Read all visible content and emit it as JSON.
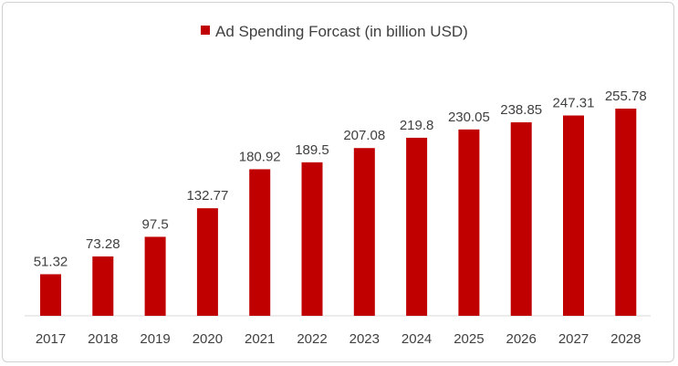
{
  "chart_data": {
    "type": "bar",
    "title": "",
    "xlabel": "",
    "ylabel": "",
    "legend": {
      "position": "top",
      "entries": [
        "Ad Spending Forcast (in billion USD)"
      ]
    },
    "grid": false,
    "ylim": [
      0,
      255.78
    ],
    "categories": [
      "2017",
      "2018",
      "2019",
      "2020",
      "2021",
      "2022",
      "2023",
      "2024",
      "2025",
      "2026",
      "2027",
      "2028"
    ],
    "series": [
      {
        "name": "Ad Spending Forcast (in billion USD)",
        "values": [
          51.32,
          73.28,
          97.5,
          132.77,
          180.92,
          189.5,
          207.08,
          219.8,
          230.05,
          238.85,
          247.31,
          255.78
        ],
        "labels": [
          "51.32",
          "73.28",
          "97.5",
          "132.77",
          "180.92",
          "189.5",
          "207.08",
          "219.8",
          "230.05",
          "238.85",
          "247.31",
          "255.78"
        ],
        "color": "#c00000"
      }
    ]
  }
}
